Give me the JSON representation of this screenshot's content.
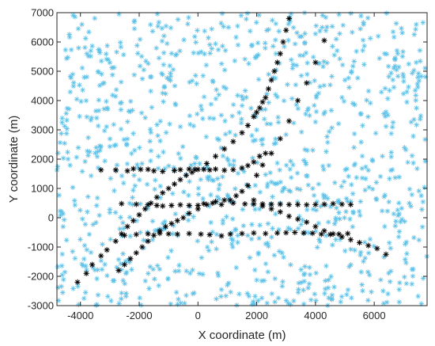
{
  "chart_data": {
    "type": "scatter",
    "xlabel": "X coordinate (m)",
    "ylabel": "Y coordinate (m)",
    "xlim": [
      -4800,
      7800
    ],
    "ylim": [
      -3000,
      7000
    ],
    "x_ticks": [
      -4000,
      -2000,
      0,
      2000,
      4000,
      6000
    ],
    "y_ticks": [
      -3000,
      -2000,
      -1000,
      0,
      1000,
      2000,
      3000,
      4000,
      5000,
      6000,
      7000
    ],
    "marker": "asterisk",
    "grid": false,
    "background_points": {
      "color": "#5bc0e8",
      "approx_count": 1100,
      "distribution": "uniform over plot area"
    },
    "series": [
      {
        "color": "#000000",
        "points": [
          [
            -3300,
            1630
          ],
          [
            -2800,
            1630
          ],
          [
            -2400,
            1600
          ],
          [
            -2200,
            1670
          ],
          [
            -1950,
            1650
          ],
          [
            -1700,
            1650
          ],
          [
            -1500,
            1600
          ],
          [
            -1200,
            1580
          ],
          [
            -800,
            1610
          ],
          [
            -600,
            1640
          ],
          [
            -300,
            1660
          ],
          [
            -100,
            1640
          ],
          [
            200,
            1650
          ],
          [
            400,
            1630
          ],
          [
            600,
            1660
          ],
          [
            900,
            1620
          ],
          [
            1200,
            1640
          ],
          [
            1500,
            1700
          ],
          [
            1700,
            1780
          ],
          [
            1900,
            1900
          ],
          [
            2100,
            2100
          ],
          [
            2300,
            2200
          ]
        ]
      },
      {
        "color": "#000000",
        "points": [
          [
            -4100,
            -2200
          ],
          [
            -3800,
            -1900
          ],
          [
            -3600,
            -1600
          ],
          [
            -3300,
            -1300
          ],
          [
            -3100,
            -1100
          ],
          [
            -2800,
            -800
          ],
          [
            -2600,
            -550
          ],
          [
            -2400,
            -300
          ],
          [
            -2200,
            -100
          ],
          [
            -2000,
            100
          ],
          [
            -1800,
            300
          ],
          [
            -1600,
            500
          ],
          [
            -1400,
            700
          ],
          [
            -1200,
            850
          ],
          [
            -1000,
            1000
          ],
          [
            -800,
            1150
          ],
          [
            -600,
            1300
          ],
          [
            -400,
            1450
          ],
          [
            -200,
            1550
          ],
          [
            0,
            1650
          ],
          [
            300,
            1850
          ],
          [
            600,
            2100
          ],
          [
            900,
            2350
          ],
          [
            1200,
            2600
          ],
          [
            1500,
            2900
          ],
          [
            1700,
            3150
          ],
          [
            1900,
            3450
          ],
          [
            2000,
            3600
          ],
          [
            2100,
            3750
          ],
          [
            2200,
            3950
          ],
          [
            2300,
            4100
          ],
          [
            2400,
            4400
          ],
          [
            2500,
            4700
          ],
          [
            2600,
            5000
          ],
          [
            2700,
            5300
          ],
          [
            2800,
            5600
          ],
          [
            2900,
            6000
          ],
          [
            3000,
            6400
          ],
          [
            3100,
            6800
          ]
        ]
      },
      {
        "color": "#000000",
        "points": [
          [
            -2700,
            -1800
          ],
          [
            -2500,
            -1600
          ],
          [
            -2300,
            -1400
          ],
          [
            -2100,
            -1200
          ],
          [
            -1900,
            -1000
          ],
          [
            -1700,
            -800
          ],
          [
            -1500,
            -600
          ],
          [
            -1300,
            -450
          ],
          [
            -1100,
            -300
          ],
          [
            -900,
            -200
          ],
          [
            -700,
            -100
          ],
          [
            -500,
            0
          ],
          [
            -300,
            150
          ],
          [
            0,
            300
          ],
          [
            300,
            450
          ],
          [
            600,
            550
          ],
          [
            900,
            600
          ],
          [
            1100,
            600
          ],
          [
            1300,
            750
          ],
          [
            1500,
            900
          ],
          [
            1700,
            1100
          ],
          [
            2000,
            1450
          ],
          [
            2200,
            1800
          ],
          [
            2500,
            2200
          ],
          [
            2800,
            2700
          ],
          [
            3100,
            3300
          ],
          [
            3400,
            4000
          ],
          [
            3700,
            4600
          ],
          [
            4000,
            5300
          ],
          [
            4300,
            6050
          ]
        ]
      },
      {
        "color": "#000000",
        "points": [
          [
            -2600,
            480
          ],
          [
            -2100,
            460
          ],
          [
            -1700,
            440
          ],
          [
            -1400,
            420
          ],
          [
            -1200,
            400
          ],
          [
            -900,
            420
          ],
          [
            -600,
            440
          ],
          [
            -300,
            420
          ],
          [
            0,
            420
          ],
          [
            200,
            480
          ],
          [
            500,
            500
          ],
          [
            800,
            450
          ],
          [
            1200,
            500
          ],
          [
            1600,
            470
          ],
          [
            1900,
            470
          ],
          [
            2200,
            470
          ],
          [
            2500,
            460
          ],
          [
            2800,
            460
          ],
          [
            3100,
            450
          ],
          [
            3400,
            450
          ],
          [
            3700,
            440
          ],
          [
            4000,
            450
          ],
          [
            4300,
            460
          ],
          [
            4600,
            480
          ],
          [
            4900,
            460
          ],
          [
            5200,
            450
          ]
        ]
      },
      {
        "color": "#000000",
        "points": [
          [
            -2500,
            -600
          ],
          [
            -2100,
            -570
          ],
          [
            -1700,
            -550
          ],
          [
            -1300,
            -530
          ],
          [
            -1000,
            -550
          ],
          [
            -700,
            -560
          ],
          [
            -300,
            -540
          ],
          [
            100,
            -560
          ],
          [
            400,
            -580
          ],
          [
            800,
            -620
          ],
          [
            1100,
            -560
          ],
          [
            1500,
            -540
          ],
          [
            1900,
            -520
          ],
          [
            2300,
            -540
          ],
          [
            2700,
            -520
          ],
          [
            3000,
            -510
          ],
          [
            3300,
            -500
          ],
          [
            3600,
            -520
          ],
          [
            3900,
            -530
          ],
          [
            4200,
            -560
          ],
          [
            4500,
            -570
          ],
          [
            4800,
            -560
          ],
          [
            5100,
            -540
          ]
        ]
      },
      {
        "color": "#000000",
        "points": [
          [
            1900,
            600
          ],
          [
            2200,
            400
          ],
          [
            2500,
            300
          ],
          [
            2800,
            200
          ],
          [
            3100,
            50
          ],
          [
            3400,
            -50
          ],
          [
            3700,
            -150
          ],
          [
            4000,
            -300
          ],
          [
            4300,
            -450
          ],
          [
            4600,
            -550
          ],
          [
            4900,
            -650
          ],
          [
            5200,
            -750
          ],
          [
            5500,
            -850
          ],
          [
            5800,
            -950
          ],
          [
            6100,
            -1050
          ],
          [
            6400,
            -1250
          ]
        ]
      }
    ]
  }
}
